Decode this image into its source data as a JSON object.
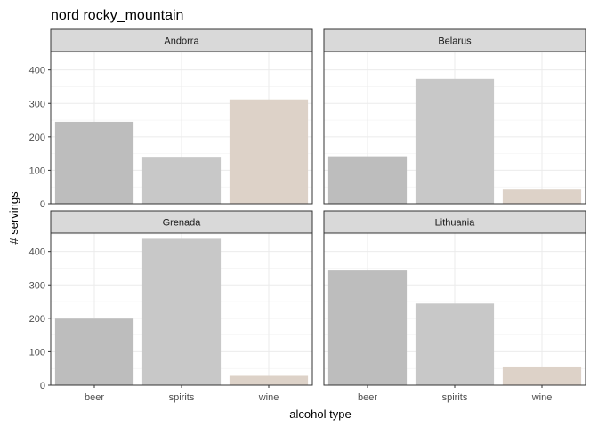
{
  "chart_data": {
    "type": "bar",
    "title": "nord rocky_mountain",
    "xlabel": "alcohol type",
    "ylabel": "# servings",
    "categories": [
      "beer",
      "spirits",
      "wine"
    ],
    "ylim": [
      0,
      455
    ],
    "yticks": [
      0,
      100,
      200,
      300,
      400
    ],
    "grid": true,
    "legend": "none",
    "colors": {
      "beer": "#bdbdbd",
      "spirits": "#c8c8c8",
      "wine": "#ddd2c8"
    },
    "panels": [
      {
        "name": "Andorra",
        "values": [
          245,
          138,
          312
        ]
      },
      {
        "name": "Belarus",
        "values": [
          142,
          373,
          42
        ]
      },
      {
        "name": "Grenada",
        "values": [
          199,
          438,
          28
        ]
      },
      {
        "name": "Lithuania",
        "values": [
          343,
          244,
          56
        ]
      }
    ]
  }
}
